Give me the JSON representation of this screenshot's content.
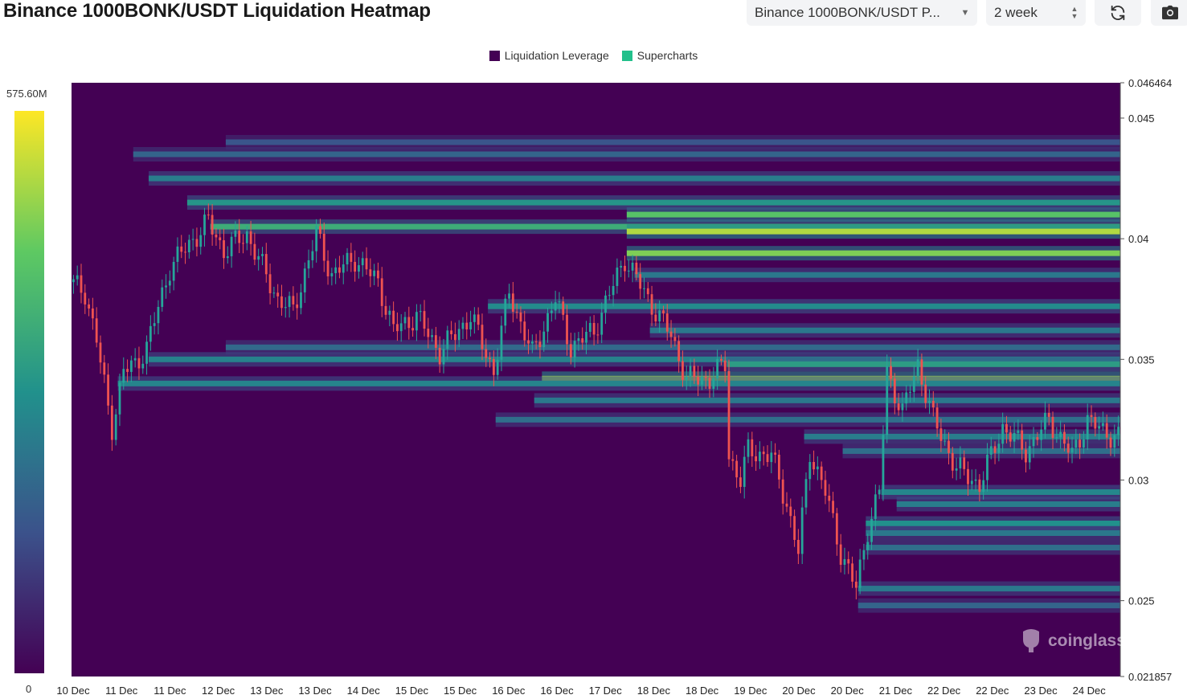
{
  "header": {
    "title": "Binance 1000BONK/USDT Liquidation Heatmap",
    "symbol_select": "Binance 1000BONK/USDT P...",
    "range_select": "2 week"
  },
  "icons": {
    "refresh": "refresh-icon",
    "camera": "camera-icon",
    "watermark": "coinglass-logo-icon"
  },
  "colors": {
    "liquidation_leverage": "#440154",
    "supercharts": "#22c08b",
    "candle_up": "#26a69a",
    "candle_down": "#ef5350"
  },
  "watermark": "coinglass",
  "colorbar": {
    "max_label": "575.60M",
    "min_label": "0"
  },
  "chart_data": {
    "type": "heatmap",
    "title": "Binance 1000BONK/USDT Liquidation Heatmap",
    "legend": [
      "Liquidation Leverage",
      "Supercharts"
    ],
    "legend_position": "top-center",
    "y_axis": {
      "min": 0.021857,
      "max": 0.046464,
      "tick_labels": [
        "0.046464",
        "0.045",
        "0.04",
        "0.035",
        "0.03",
        "0.025",
        "0.021857"
      ],
      "tick_values": [
        0.046464,
        0.045,
        0.04,
        0.035,
        0.03,
        0.025,
        0.021857
      ],
      "position": "right"
    },
    "x_axis": {
      "tick_labels": [
        "10 Dec",
        "11 Dec",
        "11 Dec",
        "12 Dec",
        "13 Dec",
        "13 Dec",
        "14 Dec",
        "15 Dec",
        "15 Dec",
        "16 Dec",
        "16 Dec",
        "17 Dec",
        "18 Dec",
        "18 Dec",
        "19 Dec",
        "20 Dec",
        "20 Dec",
        "21 Dec",
        "22 Dec",
        "22 Dec",
        "23 Dec",
        "24 Dec"
      ],
      "days_span": 13.6
    },
    "colorbar_range": [
      0,
      575.6
    ],
    "colorbar_units": "M",
    "price_path": [
      [
        0.0,
        0.0382
      ],
      [
        0.2,
        0.0378
      ],
      [
        0.35,
        0.0358
      ],
      [
        0.5,
        0.033
      ],
      [
        0.55,
        0.0322
      ],
      [
        0.7,
        0.0345
      ],
      [
        0.85,
        0.0348
      ],
      [
        1.0,
        0.0355
      ],
      [
        1.3,
        0.0388
      ],
      [
        1.5,
        0.0396
      ],
      [
        1.8,
        0.0407
      ],
      [
        2.0,
        0.0395
      ],
      [
        2.3,
        0.0402
      ],
      [
        2.5,
        0.0388
      ],
      [
        2.7,
        0.0375
      ],
      [
        2.9,
        0.037
      ],
      [
        3.2,
        0.0402
      ],
      [
        3.4,
        0.0385
      ],
      [
        3.7,
        0.0392
      ],
      [
        4.0,
        0.0382
      ],
      [
        4.2,
        0.0362
      ],
      [
        4.5,
        0.0368
      ],
      [
        4.8,
        0.0353
      ],
      [
        5.2,
        0.0368
      ],
      [
        5.5,
        0.0345
      ],
      [
        5.7,
        0.0378
      ],
      [
        6.0,
        0.0352
      ],
      [
        6.3,
        0.0375
      ],
      [
        6.5,
        0.0355
      ],
      [
        6.8,
        0.0362
      ],
      [
        7.2,
        0.0392
      ],
      [
        7.5,
        0.0375
      ],
      [
        7.8,
        0.036
      ],
      [
        8.0,
        0.0342
      ],
      [
        8.3,
        0.0342
      ],
      [
        8.5,
        0.0348
      ],
      [
        8.55,
        0.031
      ],
      [
        8.7,
        0.03
      ],
      [
        8.8,
        0.0312
      ],
      [
        9.1,
        0.031
      ],
      [
        9.3,
        0.029
      ],
      [
        9.45,
        0.027
      ],
      [
        9.6,
        0.0312
      ],
      [
        9.8,
        0.0295
      ],
      [
        10.0,
        0.027
      ],
      [
        10.2,
        0.0255
      ],
      [
        10.35,
        0.028
      ],
      [
        10.5,
        0.0295
      ],
      [
        10.6,
        0.0345
      ],
      [
        10.8,
        0.0328
      ],
      [
        11.0,
        0.0348
      ],
      [
        11.2,
        0.0325
      ],
      [
        11.5,
        0.0305
      ],
      [
        11.8,
        0.0298
      ],
      [
        12.1,
        0.0322
      ],
      [
        12.4,
        0.0312
      ],
      [
        12.7,
        0.0325
      ],
      [
        13.0,
        0.031
      ],
      [
        13.2,
        0.0325
      ],
      [
        13.4,
        0.032
      ],
      [
        13.6,
        0.0318
      ]
    ],
    "liquidation_bands": [
      {
        "price": 0.0405,
        "start_day": 1.8,
        "intensity": 0.62
      },
      {
        "price": 0.0403,
        "start_day": 7.2,
        "intensity": 0.88
      },
      {
        "price": 0.0394,
        "start_day": 7.2,
        "intensity": 0.8
      },
      {
        "price": 0.041,
        "start_day": 7.2,
        "intensity": 0.72
      },
      {
        "price": 0.0415,
        "start_day": 1.5,
        "intensity": 0.52
      },
      {
        "price": 0.0425,
        "start_day": 1.0,
        "intensity": 0.42
      },
      {
        "price": 0.0435,
        "start_day": 0.8,
        "intensity": 0.32
      },
      {
        "price": 0.044,
        "start_day": 2.0,
        "intensity": 0.26
      },
      {
        "price": 0.0372,
        "start_day": 5.4,
        "intensity": 0.48
      },
      {
        "price": 0.0385,
        "start_day": 7.3,
        "intensity": 0.4
      },
      {
        "price": 0.0362,
        "start_day": 7.5,
        "intensity": 0.4
      },
      {
        "price": 0.0342,
        "start_day": 6.1,
        "intensity": 0.85
      },
      {
        "price": 0.034,
        "start_day": 0.6,
        "intensity": 0.45
      },
      {
        "price": 0.035,
        "start_day": 1.0,
        "intensity": 0.44
      },
      {
        "price": 0.0355,
        "start_day": 2.0,
        "intensity": 0.34
      },
      {
        "price": 0.0348,
        "start_day": 8.5,
        "intensity": 0.55
      },
      {
        "price": 0.0333,
        "start_day": 6.0,
        "intensity": 0.4
      },
      {
        "price": 0.0325,
        "start_day": 5.5,
        "intensity": 0.36
      },
      {
        "price": 0.0318,
        "start_day": 9.5,
        "intensity": 0.42
      },
      {
        "price": 0.0312,
        "start_day": 10.0,
        "intensity": 0.36
      },
      {
        "price": 0.0295,
        "start_day": 10.5,
        "intensity": 0.46
      },
      {
        "price": 0.029,
        "start_day": 10.7,
        "intensity": 0.42
      },
      {
        "price": 0.0282,
        "start_day": 10.3,
        "intensity": 0.5
      },
      {
        "price": 0.0278,
        "start_day": 10.3,
        "intensity": 0.4
      },
      {
        "price": 0.0272,
        "start_day": 10.3,
        "intensity": 0.36
      },
      {
        "price": 0.0255,
        "start_day": 10.2,
        "intensity": 0.4
      },
      {
        "price": 0.0248,
        "start_day": 10.2,
        "intensity": 0.32
      }
    ]
  }
}
